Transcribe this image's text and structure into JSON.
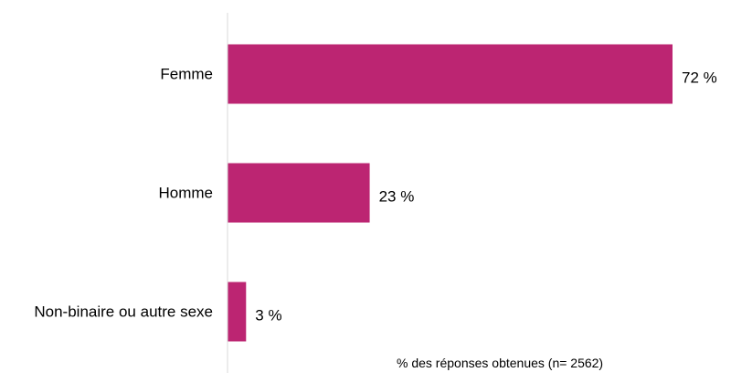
{
  "chart_data": {
    "type": "bar",
    "orientation": "horizontal",
    "categories": [
      "Femme",
      "Homme",
      "Non-binaire ou autre sexe"
    ],
    "values": [
      72,
      23,
      3
    ],
    "data_labels": [
      "72 %",
      "23 %",
      "3 %"
    ],
    "xlim": [
      0,
      75
    ],
    "grid": false,
    "legend": "none",
    "colors": {
      "bar": "#bc2572",
      "axis": "#d9d9d9"
    },
    "note": "% des réponses obtenues (n= 2562)"
  }
}
